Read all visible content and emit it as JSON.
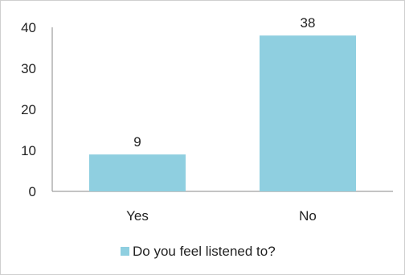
{
  "chart_data": {
    "type": "bar",
    "categories": [
      "Yes",
      "No"
    ],
    "series": [
      {
        "name": "Do you feel listened to?",
        "values": [
          9,
          38
        ]
      }
    ],
    "ylim": [
      0,
      40
    ],
    "yticks": [
      0,
      10,
      20,
      30,
      40
    ],
    "grid": false,
    "legend": "bottom",
    "data_labels": true,
    "colors": {
      "bar": "#8fcfe0",
      "axis": "#8a8a8a"
    }
  }
}
